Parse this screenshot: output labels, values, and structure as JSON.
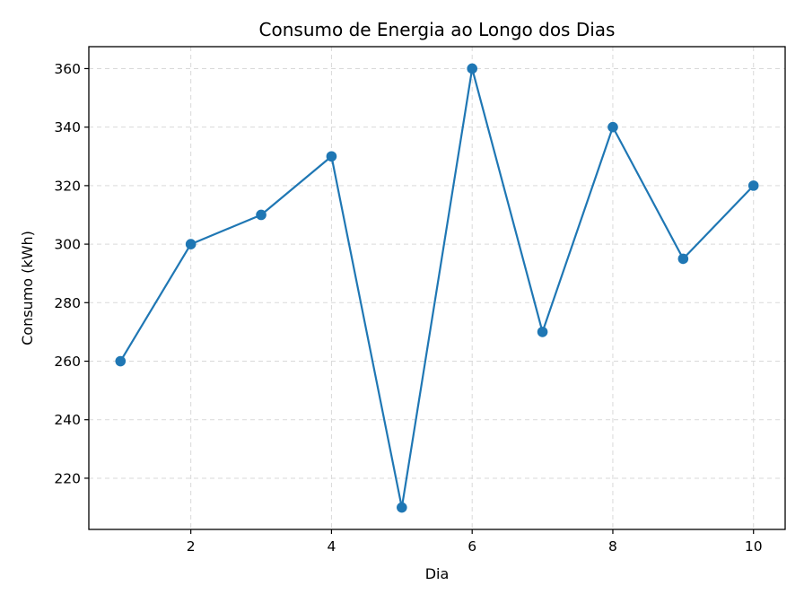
{
  "chart_data": {
    "type": "line",
    "title": "Consumo de Energia ao Longo dos Dias",
    "xlabel": "Dia",
    "ylabel": "Consumo (kWh)",
    "x": [
      1,
      2,
      3,
      4,
      5,
      6,
      7,
      8,
      9,
      10
    ],
    "series": [
      {
        "values": [
          260,
          300,
          310,
          330,
          210,
          360,
          270,
          340,
          295,
          320
        ],
        "color": "#1f77b4"
      }
    ],
    "xlim": [
      0.55,
      10.45
    ],
    "ylim": [
      202.5,
      367.5
    ],
    "xticks": [
      2,
      4,
      6,
      8,
      10
    ],
    "yticks": [
      220,
      240,
      260,
      280,
      300,
      320,
      340,
      360
    ],
    "grid": true,
    "marker": "circle"
  }
}
